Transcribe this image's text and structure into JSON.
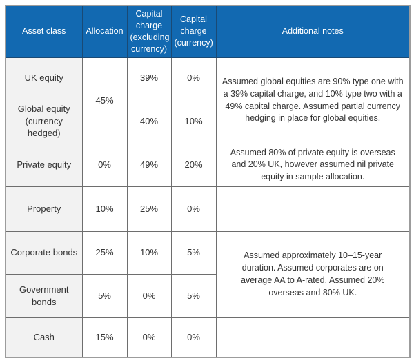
{
  "colors": {
    "header_bg": "#1269b1",
    "header_text": "#ffffff",
    "asset_column_bg": "#f2f2f2",
    "inner_border": "#6e6e6e",
    "outer_border": "#9c9c9c",
    "cell_text": "#333333"
  },
  "table": {
    "headers": {
      "asset_class": "Asset class",
      "allocation": "Allocation",
      "capital_charge_excluding": "Capital charge (excluding currency)",
      "capital_charge_currency": "Capital charge (currency)",
      "additional_notes": "Additional notes"
    },
    "rows": [
      {
        "asset": "UK equity",
        "allocation": "45%",
        "charge_ex": "39%",
        "charge_cur": "0%"
      },
      {
        "asset": "Global equity (currency hedged)",
        "charge_ex": "40%",
        "charge_cur": "10%"
      },
      {
        "asset": "Private equity",
        "allocation": "0%",
        "charge_ex": "49%",
        "charge_cur": "20%"
      },
      {
        "asset": "Property",
        "allocation": "10%",
        "charge_ex": "25%",
        "charge_cur": "0%",
        "note": ""
      },
      {
        "asset": "Corporate bonds",
        "allocation": "25%",
        "charge_ex": "10%",
        "charge_cur": "5%"
      },
      {
        "asset": "Government bonds",
        "allocation": "5%",
        "charge_ex": "0%",
        "charge_cur": "5%"
      },
      {
        "asset": "Cash",
        "allocation": "15%",
        "charge_ex": "0%",
        "charge_cur": "0%",
        "note": ""
      }
    ],
    "notes": {
      "equities": "Assumed global equities are 90% type one with a 39% capital charge, and 10% type two with a 49% capital charge. Assumed partial currency hedging in place for global equities.",
      "private_equity": "Assumed 80% of private equity is overseas and 20% UK, however assumed nil private equity in sample allocation.",
      "bonds": "Assumed approximately 10–15-year duration. Assumed corporates are on average AA to A-rated. Assumed 20% overseas and 80% UK."
    }
  }
}
